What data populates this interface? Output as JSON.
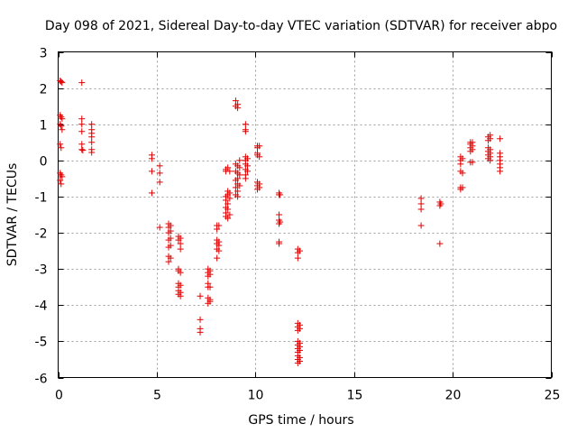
{
  "chart_data": {
    "type": "scatter",
    "title": "Day 098 of 2021, Sidereal Day-to-day VTEC variation (SDTVAR) for receiver abpo",
    "xlabel": "GPS time / hours",
    "ylabel": "SDTVAR / TECUs",
    "xlim": [
      0,
      25
    ],
    "ylim": [
      -6,
      3
    ],
    "xticks": [
      0,
      5,
      10,
      15,
      20,
      25
    ],
    "yticks": [
      -6,
      -5,
      -4,
      -3,
      -2,
      -1,
      0,
      1,
      2,
      3
    ],
    "grid": true,
    "marker": "+",
    "color": "#e00000",
    "series": [
      {
        "name": "SDTVAR",
        "points": [
          [
            0.1,
            2.2
          ],
          [
            0.15,
            2.18
          ],
          [
            0.2,
            2.15
          ],
          [
            0.1,
            1.25
          ],
          [
            0.15,
            1.2
          ],
          [
            0.2,
            1.15
          ],
          [
            0.1,
            1.0
          ],
          [
            0.15,
            0.95
          ],
          [
            0.2,
            0.85
          ],
          [
            0.1,
            0.45
          ],
          [
            0.15,
            0.35
          ],
          [
            0.1,
            -0.35
          ],
          [
            0.15,
            -0.4
          ],
          [
            0.2,
            -0.45
          ],
          [
            0.1,
            -0.55
          ],
          [
            0.15,
            -0.65
          ],
          [
            1.2,
            2.15
          ],
          [
            1.2,
            1.15
          ],
          [
            1.2,
            1.0
          ],
          [
            1.2,
            0.8
          ],
          [
            1.2,
            0.45
          ],
          [
            1.2,
            0.3
          ],
          [
            1.25,
            0.28
          ],
          [
            1.7,
            1.0
          ],
          [
            1.7,
            0.85
          ],
          [
            1.7,
            0.75
          ],
          [
            1.7,
            0.65
          ],
          [
            1.7,
            0.5
          ],
          [
            1.7,
            0.3
          ],
          [
            1.7,
            0.22
          ],
          [
            4.75,
            0.15
          ],
          [
            4.75,
            0.05
          ],
          [
            4.75,
            -0.3
          ],
          [
            4.75,
            -0.9
          ],
          [
            5.15,
            -0.15
          ],
          [
            5.15,
            -0.35
          ],
          [
            5.15,
            -0.6
          ],
          [
            5.15,
            -1.85
          ],
          [
            5.6,
            -1.75
          ],
          [
            5.6,
            -1.85
          ],
          [
            5.6,
            -2.0
          ],
          [
            5.6,
            -2.2
          ],
          [
            5.6,
            -2.4
          ],
          [
            5.6,
            -2.65
          ],
          [
            5.6,
            -2.8
          ],
          [
            5.7,
            -1.8
          ],
          [
            5.7,
            -1.95
          ],
          [
            5.7,
            -2.15
          ],
          [
            5.7,
            -2.35
          ],
          [
            5.7,
            -2.7
          ],
          [
            6.1,
            -2.1
          ],
          [
            6.1,
            -2.2
          ],
          [
            6.1,
            -3.0
          ],
          [
            6.1,
            -3.05
          ],
          [
            6.1,
            -3.4
          ],
          [
            6.1,
            -3.5
          ],
          [
            6.1,
            -3.6
          ],
          [
            6.1,
            -3.7
          ],
          [
            6.2,
            -2.15
          ],
          [
            6.2,
            -2.3
          ],
          [
            6.2,
            -2.45
          ],
          [
            6.2,
            -3.1
          ],
          [
            6.2,
            -3.45
          ],
          [
            6.2,
            -3.65
          ],
          [
            6.2,
            -3.75
          ],
          [
            7.2,
            -3.75
          ],
          [
            7.2,
            -4.4
          ],
          [
            7.2,
            -4.65
          ],
          [
            7.2,
            -4.75
          ],
          [
            7.6,
            -3.0
          ],
          [
            7.6,
            -3.1
          ],
          [
            7.6,
            -3.2
          ],
          [
            7.6,
            -3.4
          ],
          [
            7.6,
            -3.5
          ],
          [
            7.6,
            -3.8
          ],
          [
            7.6,
            -3.95
          ],
          [
            7.7,
            -3.05
          ],
          [
            7.7,
            -3.15
          ],
          [
            7.7,
            -3.5
          ],
          [
            7.7,
            -3.85
          ],
          [
            7.7,
            -3.9
          ],
          [
            8.05,
            -1.8
          ],
          [
            8.05,
            -1.9
          ],
          [
            8.05,
            -2.2
          ],
          [
            8.05,
            -2.3
          ],
          [
            8.05,
            -2.45
          ],
          [
            8.05,
            -2.7
          ],
          [
            8.15,
            -1.8
          ],
          [
            8.15,
            -2.25
          ],
          [
            8.15,
            -2.35
          ],
          [
            8.15,
            -2.5
          ],
          [
            8.5,
            -0.25
          ],
          [
            8.5,
            -0.3
          ],
          [
            8.5,
            -1.0
          ],
          [
            8.5,
            -1.1
          ],
          [
            8.5,
            -1.3
          ],
          [
            8.5,
            -1.45
          ],
          [
            8.5,
            -1.55
          ],
          [
            8.6,
            -0.2
          ],
          [
            8.6,
            -0.85
          ],
          [
            8.6,
            -0.95
          ],
          [
            8.6,
            -1.2
          ],
          [
            8.6,
            -1.35
          ],
          [
            8.6,
            -1.6
          ],
          [
            8.7,
            -0.3
          ],
          [
            8.7,
            -0.9
          ],
          [
            8.7,
            -1.05
          ],
          [
            8.7,
            -1.5
          ],
          [
            9.0,
            1.65
          ],
          [
            9.0,
            1.5
          ],
          [
            9.0,
            -0.1
          ],
          [
            9.0,
            -0.3
          ],
          [
            9.0,
            -0.55
          ],
          [
            9.0,
            -0.75
          ],
          [
            9.0,
            -0.95
          ],
          [
            9.1,
            1.55
          ],
          [
            9.1,
            1.45
          ],
          [
            9.1,
            -0.15
          ],
          [
            9.1,
            -0.35
          ],
          [
            9.1,
            -0.5
          ],
          [
            9.1,
            -0.65
          ],
          [
            9.1,
            -0.85
          ],
          [
            9.1,
            -1.0
          ],
          [
            9.2,
            0.0
          ],
          [
            9.2,
            -0.2
          ],
          [
            9.2,
            -0.4
          ],
          [
            9.2,
            -0.7
          ],
          [
            9.5,
            1.0
          ],
          [
            9.5,
            0.85
          ],
          [
            9.5,
            0.8
          ],
          [
            9.5,
            0.1
          ],
          [
            9.5,
            0.0
          ],
          [
            9.5,
            -0.1
          ],
          [
            9.5,
            -0.25
          ],
          [
            9.5,
            -0.4
          ],
          [
            9.5,
            -0.5
          ],
          [
            9.6,
            0.05
          ],
          [
            9.6,
            -0.15
          ],
          [
            9.6,
            -0.3
          ],
          [
            10.1,
            0.4
          ],
          [
            10.1,
            0.35
          ],
          [
            10.1,
            0.2
          ],
          [
            10.1,
            0.15
          ],
          [
            10.1,
            -0.6
          ],
          [
            10.1,
            -0.7
          ],
          [
            10.1,
            -0.8
          ],
          [
            10.2,
            0.4
          ],
          [
            10.2,
            0.1
          ],
          [
            10.2,
            -0.65
          ],
          [
            10.2,
            -0.75
          ],
          [
            11.2,
            -0.9
          ],
          [
            11.2,
            -0.95
          ],
          [
            11.2,
            -1.5
          ],
          [
            11.2,
            -1.65
          ],
          [
            11.2,
            -1.75
          ],
          [
            11.2,
            -2.25
          ],
          [
            11.2,
            -2.3
          ],
          [
            11.25,
            -0.95
          ],
          [
            11.25,
            -1.7
          ],
          [
            12.15,
            -2.45
          ],
          [
            12.15,
            -2.55
          ],
          [
            12.15,
            -2.7
          ],
          [
            12.15,
            -4.5
          ],
          [
            12.15,
            -4.6
          ],
          [
            12.15,
            -4.7
          ],
          [
            12.15,
            -5.0
          ],
          [
            12.15,
            -5.1
          ],
          [
            12.15,
            -5.2
          ],
          [
            12.15,
            -5.3
          ],
          [
            12.15,
            -5.4
          ],
          [
            12.15,
            -5.5
          ],
          [
            12.15,
            -5.6
          ],
          [
            12.25,
            -2.5
          ],
          [
            12.25,
            -4.55
          ],
          [
            12.25,
            -4.65
          ],
          [
            12.25,
            -5.05
          ],
          [
            12.25,
            -5.15
          ],
          [
            12.25,
            -5.25
          ],
          [
            12.25,
            -5.45
          ],
          [
            12.25,
            -5.55
          ],
          [
            18.4,
            -1.05
          ],
          [
            18.4,
            -1.2
          ],
          [
            18.4,
            -1.35
          ],
          [
            18.4,
            -1.8
          ],
          [
            19.35,
            -1.15
          ],
          [
            19.35,
            -1.25
          ],
          [
            19.35,
            -2.3
          ],
          [
            19.4,
            -1.2
          ],
          [
            20.4,
            0.1
          ],
          [
            20.4,
            0.0
          ],
          [
            20.4,
            -0.1
          ],
          [
            20.4,
            -0.3
          ],
          [
            20.4,
            -0.75
          ],
          [
            20.4,
            -0.8
          ],
          [
            20.5,
            0.05
          ],
          [
            20.5,
            -0.35
          ],
          [
            20.5,
            -0.75
          ],
          [
            20.9,
            0.5
          ],
          [
            20.9,
            0.45
          ],
          [
            20.9,
            0.35
          ],
          [
            20.9,
            0.25
          ],
          [
            20.9,
            -0.05
          ],
          [
            21.0,
            0.5
          ],
          [
            21.0,
            0.4
          ],
          [
            21.0,
            0.3
          ],
          [
            21.0,
            -0.05
          ],
          [
            21.8,
            0.65
          ],
          [
            21.8,
            0.55
          ],
          [
            21.8,
            0.35
          ],
          [
            21.8,
            0.25
          ],
          [
            21.8,
            0.15
          ],
          [
            21.8,
            0.05
          ],
          [
            21.9,
            0.7
          ],
          [
            21.9,
            0.6
          ],
          [
            21.9,
            0.3
          ],
          [
            21.9,
            0.2
          ],
          [
            21.9,
            0.1
          ],
          [
            21.9,
            0.0
          ],
          [
            22.4,
            0.6
          ],
          [
            22.4,
            0.2
          ],
          [
            22.4,
            0.1
          ],
          [
            22.4,
            0.0
          ],
          [
            22.4,
            -0.1
          ],
          [
            22.4,
            -0.2
          ],
          [
            22.4,
            -0.3
          ]
        ]
      }
    ]
  }
}
